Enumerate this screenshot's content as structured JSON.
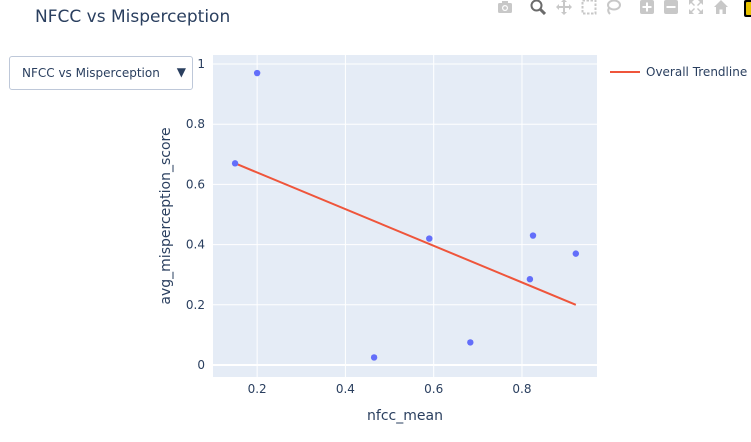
{
  "title": "NFCC vs Misperception",
  "dropdown": {
    "selected": "NFCC vs Misperception",
    "arrow": "▼"
  },
  "modebar": {
    "buttons": [
      {
        "icon": "camera-icon",
        "glyph": "📷",
        "active": false
      },
      {
        "icon": "zoom-icon",
        "glyph": "🔍",
        "active": true
      },
      {
        "icon": "pan-icon",
        "glyph": "✥",
        "active": false
      },
      {
        "icon": "box-select-icon",
        "glyph": "⬚",
        "active": false
      },
      {
        "icon": "lasso-select-icon",
        "glyph": "◌",
        "active": false
      },
      {
        "icon": "zoom-in-icon",
        "glyph": "⊞",
        "active": false
      },
      {
        "icon": "zoom-out-icon",
        "glyph": "⊟",
        "active": false
      },
      {
        "icon": "autoscale-icon",
        "glyph": "⤧",
        "active": false
      },
      {
        "icon": "home-icon",
        "glyph": "⌂",
        "active": false
      }
    ]
  },
  "colors": {
    "plot_bg": "#e5ecf6",
    "grid": "#ffffff",
    "points": "#636efa",
    "trendline": "#ef553b",
    "text": "#2a3f5f"
  },
  "chart_data": {
    "type": "scatter",
    "title": "NFCC vs Misperception",
    "xlabel": "nfcc_mean",
    "ylabel": "avg_misperception_score",
    "xlim": [
      0.1,
      0.97
    ],
    "ylim": [
      -0.04,
      1.03
    ],
    "xticks": [
      0.2,
      0.4,
      0.6,
      0.8
    ],
    "yticks": [
      0,
      0.2,
      0.4,
      0.6,
      0.8,
      1
    ],
    "grid": true,
    "legend_position": "top-right, outside plot",
    "series": [
      {
        "kind": "markers",
        "points": [
          {
            "x": 0.15,
            "y": 0.67
          },
          {
            "x": 0.2,
            "y": 0.97
          },
          {
            "x": 0.465,
            "y": 0.025
          },
          {
            "x": 0.59,
            "y": 0.42
          },
          {
            "x": 0.683,
            "y": 0.075
          },
          {
            "x": 0.818,
            "y": 0.285
          },
          {
            "x": 0.825,
            "y": 0.43
          },
          {
            "x": 0.922,
            "y": 0.37
          }
        ]
      },
      {
        "kind": "line",
        "name": "Overall Trendline",
        "points": [
          {
            "x": 0.15,
            "y": 0.67
          },
          {
            "x": 0.922,
            "y": 0.2
          }
        ]
      }
    ]
  }
}
